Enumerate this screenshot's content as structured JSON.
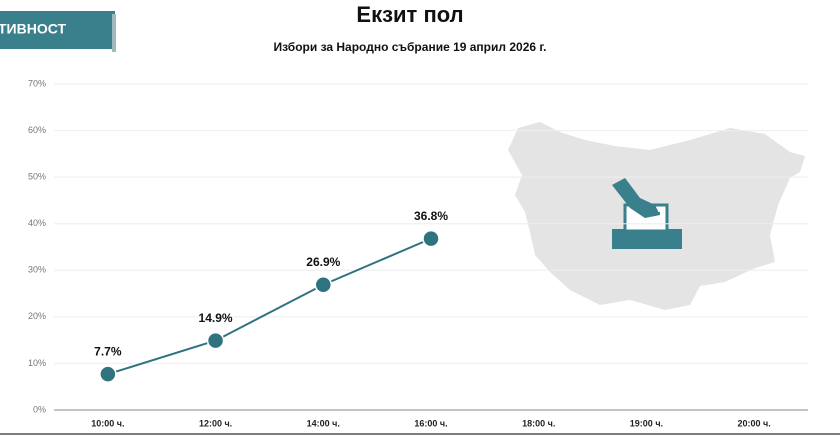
{
  "tab": "ТИВНОСТ",
  "chart_data": {
    "type": "line",
    "title": "Екзит пол",
    "subtitle": "Избори за Народно събрание 19 април 2026 г.",
    "categories": [
      "10:00 ч.",
      "12:00 ч.",
      "14:00 ч.",
      "16:00 ч.",
      "18:00 ч.",
      "19:00 ч.",
      "20:00 ч."
    ],
    "values": [
      7.7,
      14.9,
      26.9,
      36.8,
      null,
      null,
      null
    ],
    "value_labels": [
      "7.7%",
      "14.9%",
      "26.9%",
      "36.8%",
      null,
      null,
      null
    ],
    "color": "#2f7381",
    "ylim": [
      0,
      70
    ],
    "yticks": [
      {
        "value": 0,
        "label": "0%"
      },
      {
        "value": 10,
        "label": "10%"
      },
      {
        "value": 20,
        "label": "20%"
      },
      {
        "value": 30,
        "label": "30%"
      },
      {
        "value": 40,
        "label": "40%"
      },
      {
        "value": 50,
        "label": "50%"
      },
      {
        "value": 60,
        "label": "60%"
      },
      {
        "value": 70,
        "label": "70%"
      }
    ],
    "grid": true
  }
}
